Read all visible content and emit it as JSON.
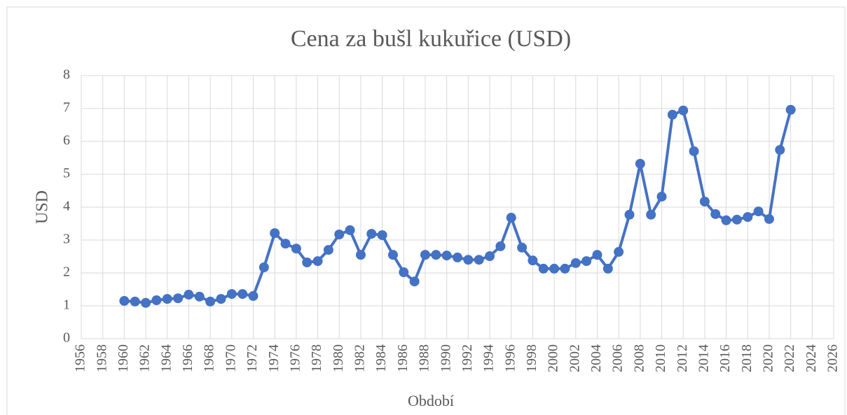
{
  "chart_data": {
    "type": "line",
    "title": "Cena za bušl kukuřice (USD)",
    "x_label": "Období",
    "y_label": "USD",
    "x": [
      1960,
      1961,
      1962,
      1963,
      1964,
      1965,
      1966,
      1967,
      1968,
      1969,
      1970,
      1971,
      1972,
      1973,
      1974,
      1975,
      1976,
      1977,
      1978,
      1979,
      1980,
      1981,
      1982,
      1983,
      1984,
      1985,
      1986,
      1987,
      1988,
      1989,
      1990,
      1991,
      1992,
      1993,
      1994,
      1995,
      1996,
      1997,
      1998,
      1999,
      2000,
      2001,
      2002,
      2003,
      2004,
      2005,
      2006,
      2007,
      2008,
      2009,
      2010,
      2011,
      2012,
      2013,
      2014,
      2015,
      2016,
      2017,
      2018,
      2019,
      2020,
      2021,
      2022
    ],
    "series": [
      {
        "color": "#4472c4",
        "values": [
          1.15,
          1.13,
          1.09,
          1.17,
          1.21,
          1.23,
          1.34,
          1.28,
          1.13,
          1.21,
          1.36,
          1.36,
          1.3,
          2.17,
          3.21,
          2.89,
          2.74,
          2.32,
          2.36,
          2.7,
          3.17,
          3.3,
          2.55,
          3.19,
          3.15,
          2.55,
          2.02,
          1.74,
          2.55,
          2.55,
          2.53,
          2.47,
          2.4,
          2.4,
          2.51,
          2.81,
          3.68,
          2.77,
          2.38,
          2.13,
          2.13,
          2.13,
          2.3,
          2.36,
          2.55,
          2.13,
          2.64,
          3.77,
          5.32,
          3.77,
          4.32,
          6.81,
          6.94,
          5.7,
          4.17,
          3.79,
          3.6,
          3.62,
          3.7,
          3.87,
          3.64,
          5.74,
          6.96
        ]
      }
    ],
    "xlim": [
      1956,
      2026
    ],
    "xticks": [
      1956,
      1958,
      1960,
      1962,
      1964,
      1966,
      1968,
      1970,
      1972,
      1974,
      1976,
      1978,
      1980,
      1982,
      1984,
      1986,
      1988,
      1990,
      1992,
      1994,
      1996,
      1998,
      2000,
      2002,
      2004,
      2006,
      2008,
      2010,
      2012,
      2014,
      2016,
      2018,
      2020,
      2022,
      2024,
      2026
    ],
    "ylim": [
      0,
      8
    ],
    "yticks": [
      0,
      1,
      2,
      3,
      4,
      5,
      6,
      7,
      8
    ],
    "grid": true
  }
}
